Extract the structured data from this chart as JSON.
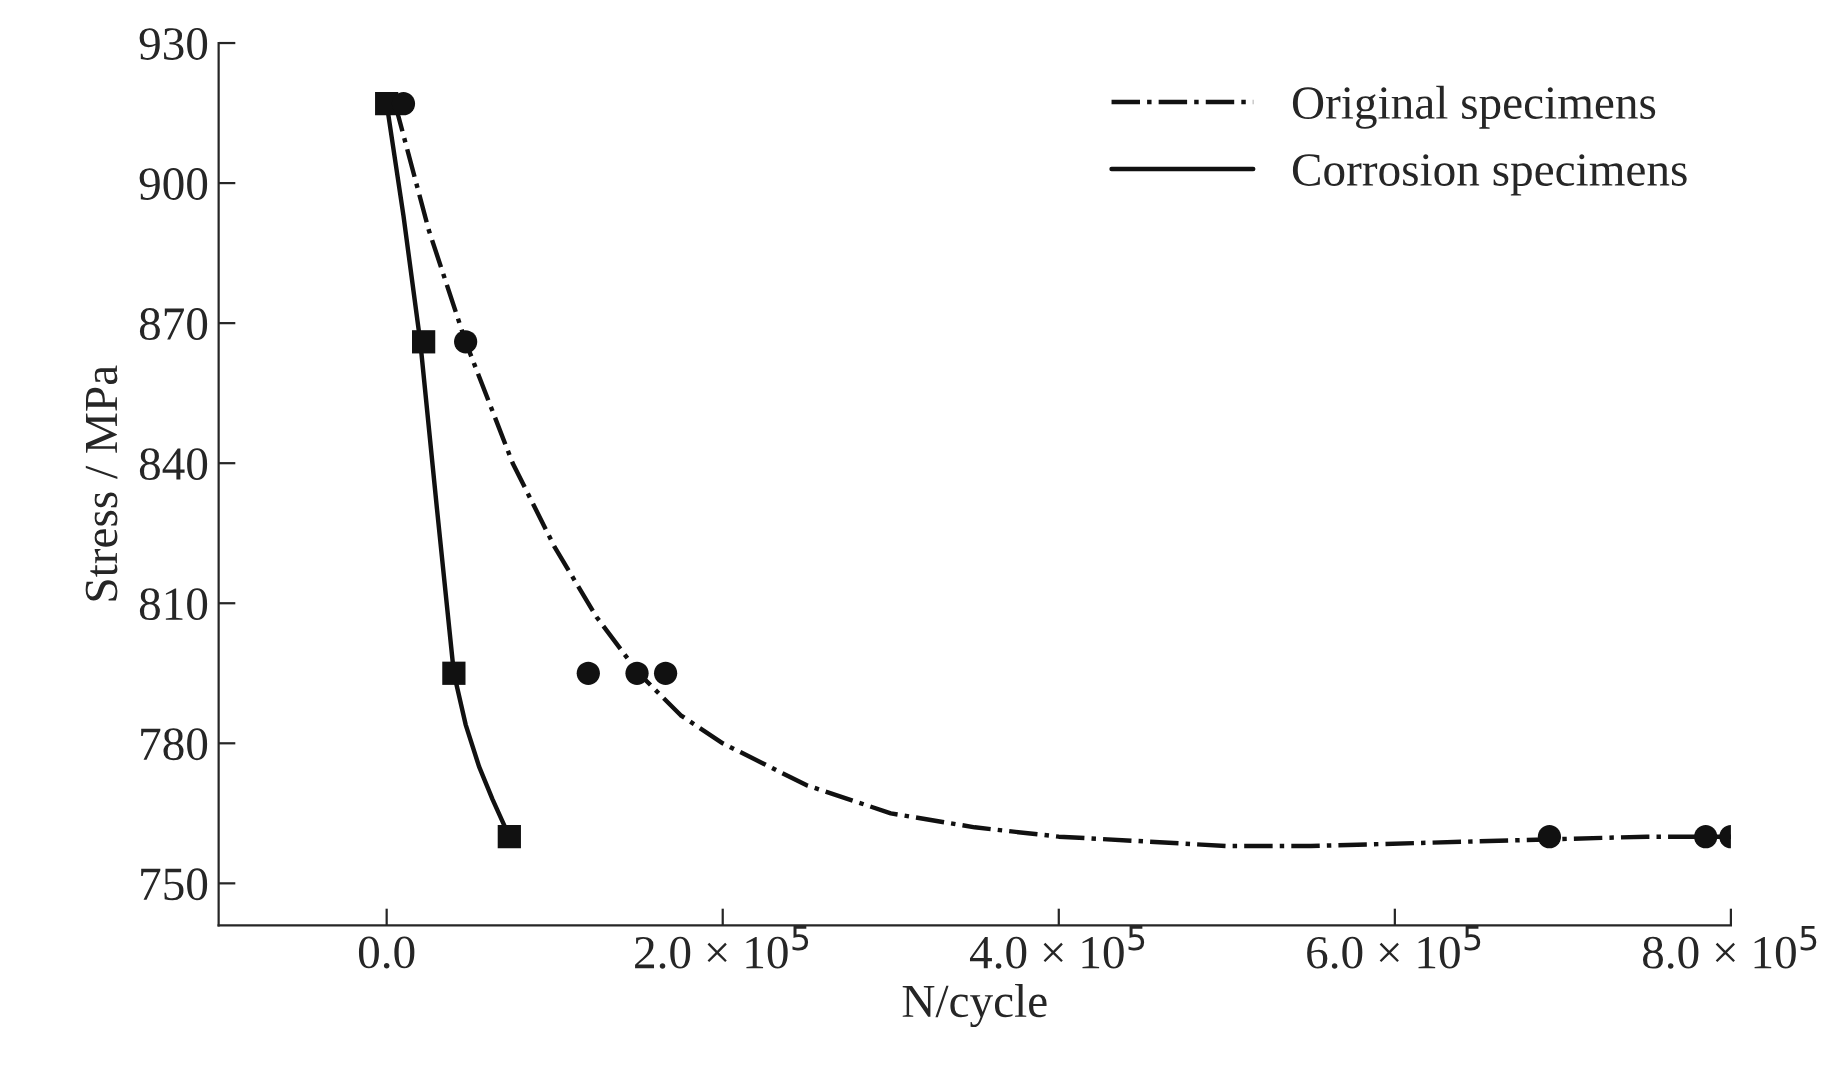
{
  "chart_data": {
    "type": "scatter",
    "xlabel": "N/cycle",
    "ylabel": "Stress / MPa",
    "xlim": [
      -100000,
      800000
    ],
    "ylim": [
      741,
      930
    ],
    "xticks": [
      {
        "value": 0,
        "label": "0.0"
      },
      {
        "value": 200000,
        "label": "2.0 × 10$^{5}$"
      },
      {
        "value": 400000,
        "label": "4.0 × 10$^{5}$"
      },
      {
        "value": 600000,
        "label": "6.0 × 10$^{5}$"
      },
      {
        "value": 800000,
        "label": "8.0 × 10$^{5}$"
      }
    ],
    "yticks": [
      750,
      780,
      810,
      840,
      870,
      900,
      930
    ],
    "grid": false,
    "legend": "top right",
    "series": [
      {
        "type": "line",
        "name": "Original specimens",
        "color": "#111111",
        "line_style": "dashdot",
        "x": [
          5000,
          25000,
          47000,
          75000,
          100000,
          125000,
          150000,
          175000,
          200000,
          250000,
          300000,
          350000,
          400000,
          500000,
          550000,
          650000,
          750000,
          800000
        ],
        "values": [
          917,
          890,
          866,
          840,
          822,
          807,
          795,
          786,
          780,
          771,
          765,
          762,
          760,
          758,
          758,
          759,
          760,
          760
        ]
      },
      {
        "type": "line",
        "name": "Corrosion specimens",
        "color": "#111111",
        "line_style": "solid",
        "x": [
          0,
          10000,
          20000,
          30000,
          40000,
          47000,
          55000,
          63000,
          73000
        ],
        "values": [
          917,
          893,
          866,
          830,
          795,
          784,
          775,
          768,
          760
        ]
      },
      {
        "color": "#111111",
        "marker": "circle",
        "x": [
          10000,
          47000,
          120000,
          149000,
          166000,
          692000,
          785000,
          800000
        ],
        "values": [
          917,
          866,
          795,
          795,
          795,
          760,
          760,
          760
        ]
      },
      {
        "color": "#111111",
        "marker": "square",
        "x": [
          0,
          22000,
          40000,
          73000
        ],
        "values": [
          917,
          866,
          795,
          760
        ]
      }
    ]
  }
}
